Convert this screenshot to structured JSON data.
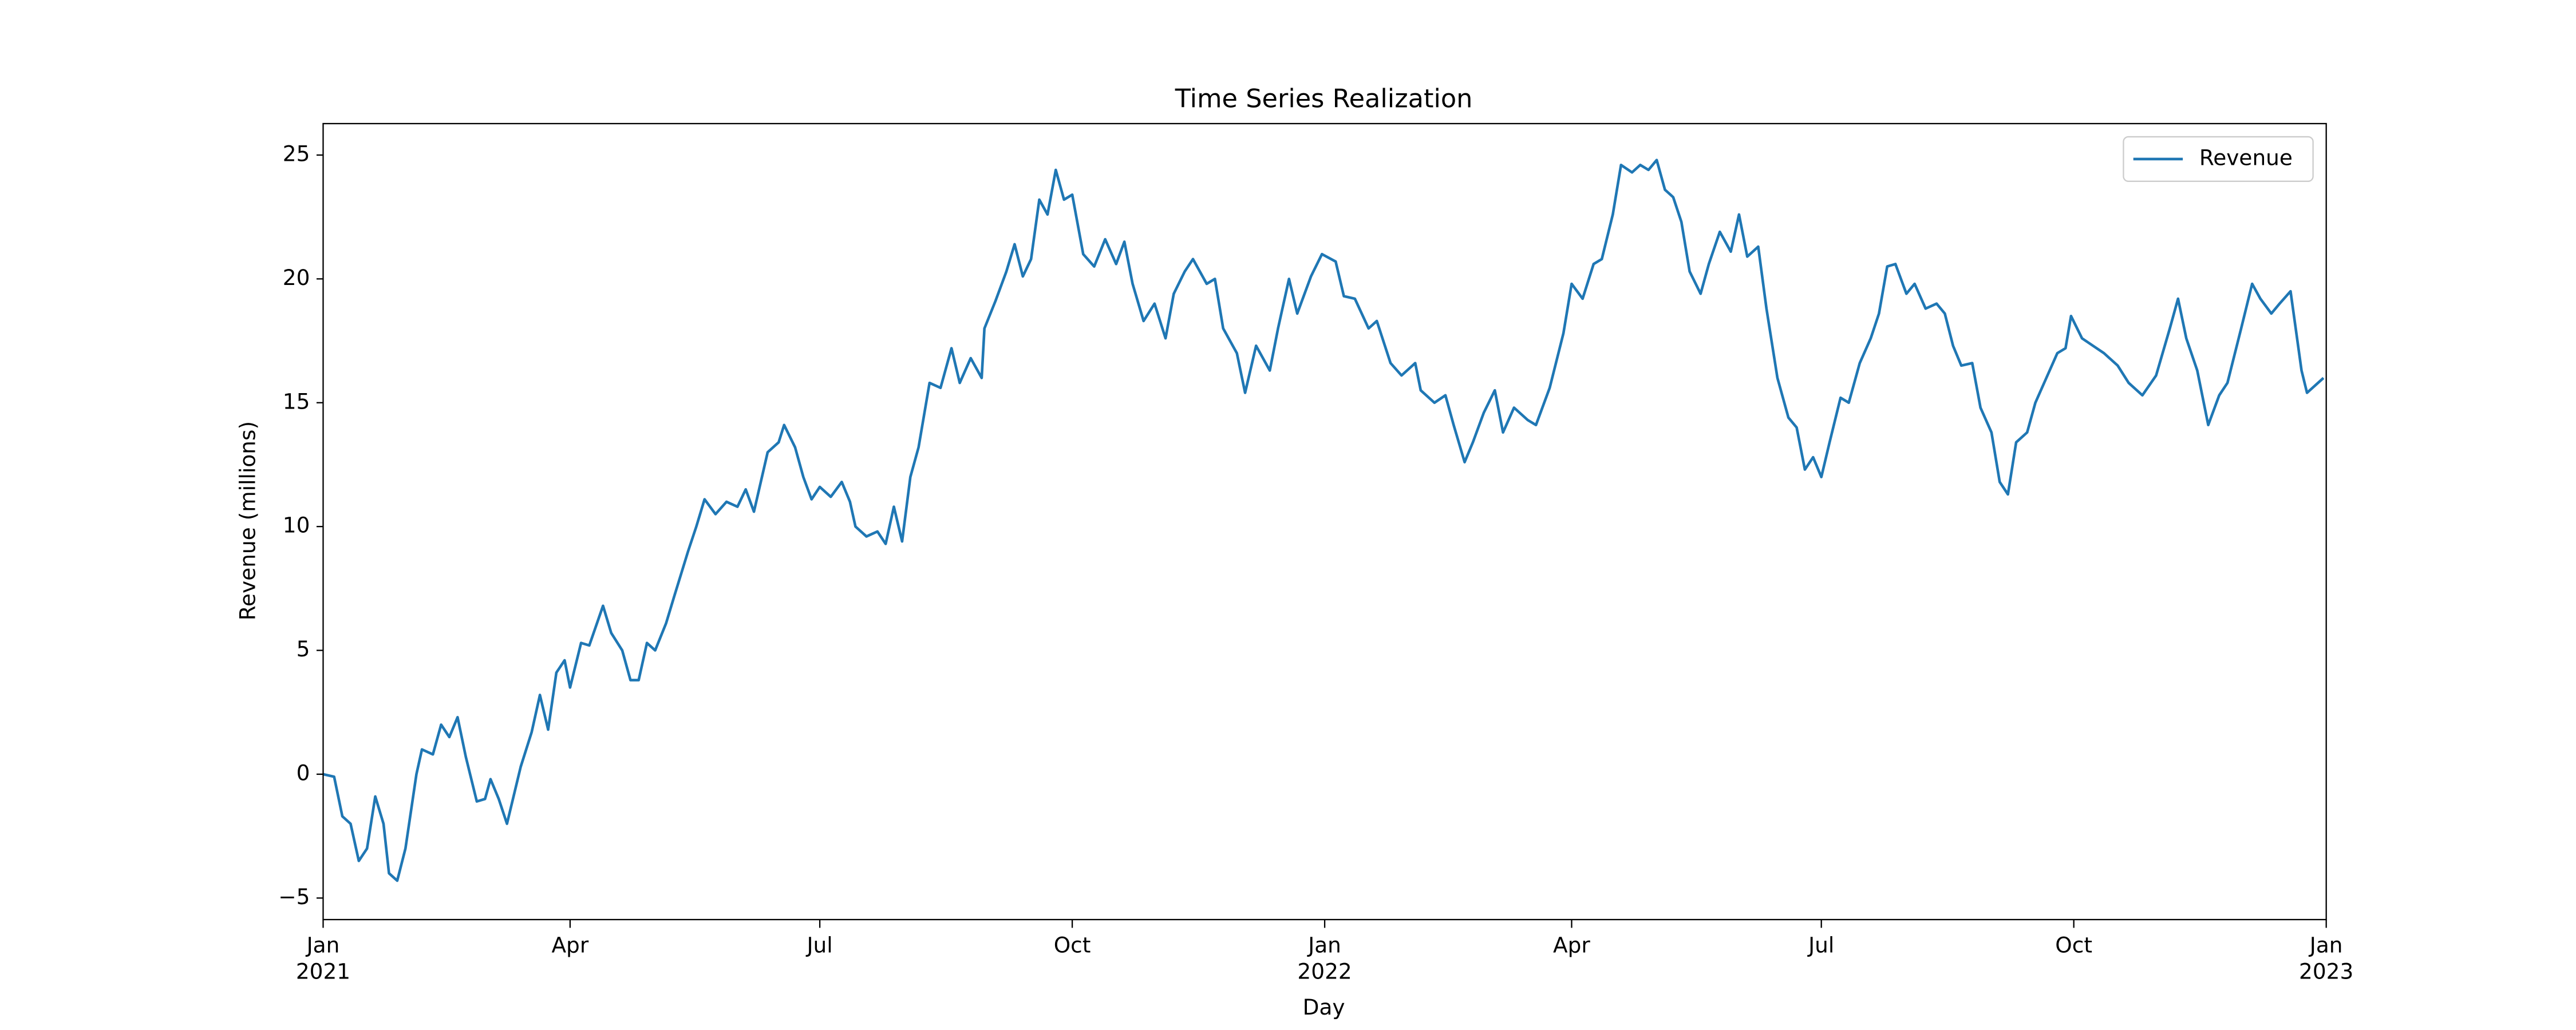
{
  "chart_data": {
    "type": "line",
    "title": "Time Series Realization",
    "x_label": "Day",
    "y_label": "Revenue (millions)",
    "legend_position": "upper right",
    "grid": false,
    "xlim": [
      "2021-01-01",
      "2023-01-01"
    ],
    "xticks": [
      {
        "value": "2021-01-01",
        "label": "Jan\n2021"
      },
      {
        "value": "2021-04-01",
        "label": "Apr"
      },
      {
        "value": "2021-07-01",
        "label": "Jul"
      },
      {
        "value": "2021-10-01",
        "label": "Oct"
      },
      {
        "value": "2022-01-01",
        "label": "Jan\n2022"
      },
      {
        "value": "2022-04-01",
        "label": "Apr"
      },
      {
        "value": "2022-07-01",
        "label": "Jul"
      },
      {
        "value": "2022-10-01",
        "label": "Oct"
      },
      {
        "value": "2023-01-01",
        "label": "Jan\n2023"
      }
    ],
    "ylim": [
      -5.87,
      26.27
    ],
    "yticks": [
      {
        "value": -5,
        "label": "−5"
      },
      0,
      5,
      10,
      15,
      20,
      25
    ],
    "x": [
      "2021-01-01",
      "2021-01-05",
      "2021-01-08",
      "2021-01-11",
      "2021-01-14",
      "2021-01-17",
      "2021-01-20",
      "2021-01-23",
      "2021-01-25",
      "2021-01-28",
      "2021-01-31",
      "2021-02-04",
      "2021-02-06",
      "2021-02-10",
      "2021-02-13",
      "2021-02-16",
      "2021-02-19",
      "2021-02-22",
      "2021-02-26",
      "2021-03-01",
      "2021-03-03",
      "2021-03-06",
      "2021-03-09",
      "2021-03-14",
      "2021-03-18",
      "2021-03-21",
      "2021-03-24",
      "2021-03-27",
      "2021-03-30",
      "2021-04-01",
      "2021-04-05",
      "2021-04-08",
      "2021-04-13",
      "2021-04-16",
      "2021-04-20",
      "2021-04-23",
      "2021-04-26",
      "2021-04-29",
      "2021-05-02",
      "2021-05-06",
      "2021-05-09",
      "2021-05-14",
      "2021-05-17",
      "2021-05-20",
      "2021-05-24",
      "2021-05-28",
      "2021-06-01",
      "2021-06-04",
      "2021-06-07",
      "2021-06-12",
      "2021-06-16",
      "2021-06-18",
      "2021-06-22",
      "2021-06-25",
      "2021-06-28",
      "2021-07-01",
      "2021-07-05",
      "2021-07-09",
      "2021-07-12",
      "2021-07-14",
      "2021-07-18",
      "2021-07-22",
      "2021-07-25",
      "2021-07-28",
      "2021-07-31",
      "2021-08-03",
      "2021-08-06",
      "2021-08-10",
      "2021-08-14",
      "2021-08-18",
      "2021-08-21",
      "2021-08-25",
      "2021-08-29",
      "2021-08-30",
      "2021-09-03",
      "2021-09-07",
      "2021-09-10",
      "2021-09-13",
      "2021-09-16",
      "2021-09-19",
      "2021-09-22",
      "2021-09-25",
      "2021-09-28",
      "2021-10-01",
      "2021-10-05",
      "2021-10-09",
      "2021-10-13",
      "2021-10-17",
      "2021-10-20",
      "2021-10-23",
      "2021-10-27",
      "2021-10-31",
      "2021-11-04",
      "2021-11-07",
      "2021-11-11",
      "2021-11-14",
      "2021-11-19",
      "2021-11-22",
      "2021-11-25",
      "2021-11-30",
      "2021-12-03",
      "2021-12-07",
      "2021-12-12",
      "2021-12-15",
      "2021-12-19",
      "2021-12-22",
      "2021-12-27",
      "2021-12-31",
      "2022-01-05",
      "2022-01-08",
      "2022-01-12",
      "2022-01-17",
      "2022-01-20",
      "2022-01-25",
      "2022-01-29",
      "2022-02-03",
      "2022-02-05",
      "2022-02-10",
      "2022-02-14",
      "2022-02-17",
      "2022-02-21",
      "2022-02-24",
      "2022-02-28",
      "2022-03-04",
      "2022-03-07",
      "2022-03-11",
      "2022-03-16",
      "2022-03-19",
      "2022-03-24",
      "2022-03-29",
      "2022-04-01",
      "2022-04-05",
      "2022-04-09",
      "2022-04-12",
      "2022-04-16",
      "2022-04-19",
      "2022-04-23",
      "2022-04-26",
      "2022-04-29",
      "2022-05-02",
      "2022-05-05",
      "2022-05-08",
      "2022-05-11",
      "2022-05-14",
      "2022-05-18",
      "2022-05-21",
      "2022-05-25",
      "2022-05-29",
      "2022-06-01",
      "2022-06-04",
      "2022-06-08",
      "2022-06-11",
      "2022-06-15",
      "2022-06-19",
      "2022-06-22",
      "2022-06-25",
      "2022-06-28",
      "2022-07-01",
      "2022-07-04",
      "2022-07-08",
      "2022-07-11",
      "2022-07-15",
      "2022-07-19",
      "2022-07-22",
      "2022-07-25",
      "2022-07-28",
      "2022-08-01",
      "2022-08-04",
      "2022-08-08",
      "2022-08-12",
      "2022-08-15",
      "2022-08-18",
      "2022-08-21",
      "2022-08-25",
      "2022-08-28",
      "2022-09-01",
      "2022-09-04",
      "2022-09-07",
      "2022-09-10",
      "2022-09-14",
      "2022-09-17",
      "2022-09-21",
      "2022-09-25",
      "2022-09-28",
      "2022-09-30",
      "2022-10-04",
      "2022-10-08",
      "2022-10-12",
      "2022-10-17",
      "2022-10-21",
      "2022-10-26",
      "2022-10-31",
      "2022-11-05",
      "2022-11-08",
      "2022-11-11",
      "2022-11-15",
      "2022-11-19",
      "2022-11-23",
      "2022-11-26",
      "2022-12-01",
      "2022-12-05",
      "2022-12-08",
      "2022-12-12",
      "2022-12-15",
      "2022-12-19",
      "2022-12-23",
      "2022-12-25",
      "2022-12-29",
      "2022-12-31"
    ],
    "series": [
      {
        "name": "Revenue",
        "color": "#1f77b4",
        "values": [
          0,
          -0.1,
          -1.7,
          -2,
          -3.5,
          -3,
          -0.9,
          -2,
          -4,
          -4.3,
          -3,
          0,
          1,
          0.8,
          2,
          1.5,
          2.3,
          0.7,
          -1.1,
          -1,
          -0.2,
          -1,
          -2,
          0.3,
          1.7,
          3.2,
          1.8,
          4.1,
          4.6,
          3.5,
          5.3,
          5.2,
          6.8,
          5.7,
          5,
          3.8,
          3.8,
          5.3,
          5,
          6.1,
          7.2,
          9,
          10,
          11.1,
          10.5,
          11,
          10.8,
          11.5,
          10.6,
          13,
          13.4,
          14.1,
          13.2,
          12,
          11.1,
          11.6,
          11.2,
          11.8,
          11,
          10,
          9.6,
          9.8,
          9.3,
          10.8,
          9.4,
          12,
          13.2,
          15.8,
          15.6,
          17.2,
          15.8,
          16.8,
          16,
          18,
          19.1,
          20.3,
          21.4,
          20.1,
          20.8,
          23.2,
          22.6,
          24.4,
          23.2,
          23.4,
          21,
          20.5,
          21.6,
          20.6,
          21.5,
          19.8,
          18.3,
          19,
          17.6,
          19.4,
          20.3,
          20.8,
          19.8,
          20,
          18,
          17,
          15.4,
          17.3,
          16.3,
          18,
          20,
          18.6,
          20.1,
          21,
          20.7,
          19.3,
          19.2,
          18,
          18.3,
          16.6,
          16.1,
          16.6,
          15.5,
          15,
          15.3,
          14.1,
          12.6,
          13.4,
          14.6,
          15.5,
          13.8,
          14.8,
          14.3,
          14.1,
          15.6,
          17.8,
          19.8,
          19.2,
          20.6,
          20.8,
          22.6,
          24.6,
          24.3,
          24.6,
          24.4,
          24.8,
          23.6,
          23.3,
          22.3,
          20.3,
          19.4,
          20.6,
          21.9,
          21.1,
          22.6,
          20.9,
          21.3,
          18.8,
          16,
          14.4,
          14,
          12.3,
          12.8,
          12,
          13.4,
          15.2,
          15,
          16.6,
          17.6,
          18.6,
          20.5,
          20.6,
          19.4,
          19.8,
          18.8,
          19,
          18.6,
          17.3,
          16.5,
          16.6,
          14.8,
          13.8,
          11.8,
          11.3,
          13.4,
          13.8,
          15,
          16,
          17,
          17.2,
          18.5,
          17.6,
          17.3,
          17,
          16.5,
          15.8,
          15.3,
          16.1,
          18,
          19.2,
          17.6,
          16.3,
          14.1,
          15.3,
          15.8,
          18,
          19.8,
          19.2,
          18.6,
          19,
          19.5,
          16.3,
          15.4,
          15.8,
          16
        ]
      }
    ]
  }
}
